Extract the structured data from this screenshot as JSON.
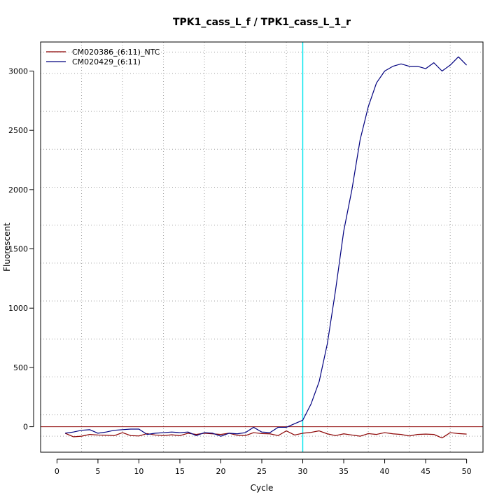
{
  "chart_data": {
    "type": "line",
    "title": "TPK1_cass_L_f / TPK1_cass_L_1_r",
    "xlabel": "Cycle",
    "ylabel": "Fluorescent",
    "xlim": [
      -2,
      52
    ],
    "ylim": [
      -215,
      3245
    ],
    "x_ticks": [
      0,
      5,
      10,
      15,
      20,
      25,
      30,
      35,
      40,
      45,
      50
    ],
    "y_ticks": [
      0,
      500,
      1000,
      1500,
      2000,
      2500,
      3000
    ],
    "x_grid": [
      3,
      8,
      13,
      18,
      23,
      28,
      33,
      38,
      43,
      48
    ],
    "y_grid": [
      -80,
      100,
      420,
      740,
      1060,
      1380,
      1700,
      2020,
      2340,
      2660,
      2980,
      3160
    ],
    "grid": true,
    "grid_style": "dotted",
    "legend_position": "top-left",
    "threshold": {
      "type": "horizontal",
      "y": 0,
      "color": "#8b0000"
    },
    "cycle_marker": {
      "type": "vertical",
      "x": 30,
      "color": "#00e5ee"
    },
    "x": [
      1,
      2,
      3,
      4,
      5,
      6,
      7,
      8,
      9,
      10,
      11,
      12,
      13,
      14,
      15,
      16,
      17,
      18,
      19,
      20,
      21,
      22,
      23,
      24,
      25,
      26,
      27,
      28,
      29,
      30,
      31,
      32,
      33,
      34,
      35,
      36,
      37,
      38,
      39,
      40,
      41,
      42,
      43,
      44,
      45,
      46,
      47,
      48,
      49,
      50
    ],
    "series": [
      {
        "name": "CM020386_(6:11)_NTC",
        "color": "#8b0000",
        "values": [
          -55,
          -85,
          -80,
          -65,
          -70,
          -72,
          -75,
          -50,
          -75,
          -78,
          -58,
          -70,
          -75,
          -68,
          -75,
          -55,
          -65,
          -55,
          -60,
          -65,
          -55,
          -72,
          -75,
          -50,
          -58,
          -60,
          -75,
          -35,
          -70,
          -55,
          -48,
          -35,
          -60,
          -75,
          -60,
          -70,
          -80,
          -58,
          -65,
          -50,
          -60,
          -65,
          -78,
          -65,
          -62,
          -65,
          -95,
          -50,
          -58,
          -62
        ]
      },
      {
        "name": "CM020429_(6:11)",
        "color": "#00007f",
        "values": [
          -55,
          -45,
          -30,
          -25,
          -55,
          -45,
          -30,
          -25,
          -20,
          -20,
          -65,
          -55,
          -50,
          -45,
          -50,
          -45,
          -75,
          -50,
          -55,
          -80,
          -55,
          -60,
          -50,
          -5,
          -45,
          -50,
          -5,
          -5,
          25,
          55,
          190,
          380,
          700,
          1150,
          1650,
          2000,
          2420,
          2700,
          2900,
          3000,
          3040,
          3060,
          3040,
          3040,
          3020,
          3070,
          3000,
          3050,
          3120,
          3050
        ]
      }
    ]
  }
}
